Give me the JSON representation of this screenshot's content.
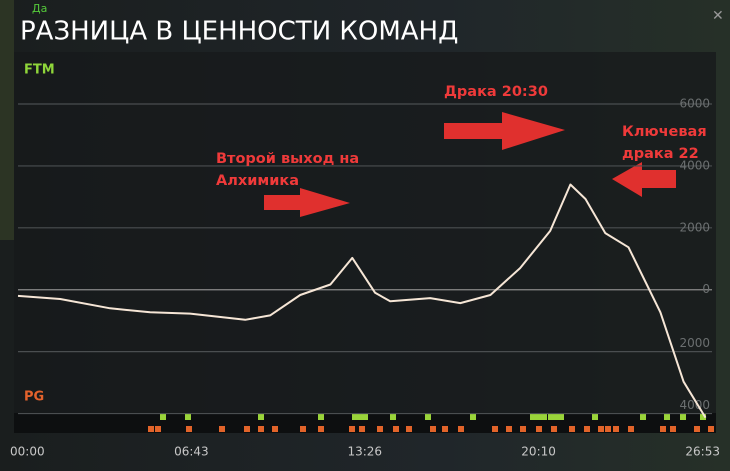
{
  "header": {
    "title": "РАЗНИЦА В ЦЕННОСТИ КОМАНД",
    "player_tag": "Да"
  },
  "chart_data": {
    "type": "line",
    "team_top": "FTM",
    "team_bottom": "PG",
    "x": [
      0,
      98,
      214,
      307,
      400,
      528,
      586,
      656,
      726,
      777,
      830,
      865,
      958,
      1028,
      1098,
      1167,
      1237,
      1284,
      1319,
      1365,
      1419,
      1493,
      1547,
      1598
    ],
    "values": [
      -200,
      -300,
      -600,
      -730,
      -770,
      -970,
      -830,
      -170,
      170,
      1030,
      -100,
      -370,
      -270,
      -430,
      -170,
      700,
      1900,
      3400,
      2930,
      1830,
      1370,
      -730,
      -2970,
      -4130
    ],
    "color": "#f6e6d6",
    "xlim": [
      0,
      1613
    ],
    "xticks": [
      {
        "value": 0,
        "label": "00:00"
      },
      {
        "value": 403,
        "label": "06:43"
      },
      {
        "value": 806,
        "label": "13:26"
      },
      {
        "value": 1210,
        "label": "20:10"
      },
      {
        "value": 1613,
        "label": "26:53"
      }
    ],
    "ylim": [
      -5500,
      6000
    ],
    "yticks": [
      {
        "value": -4000,
        "label": "4000"
      },
      {
        "value": -2000,
        "label": "2000"
      },
      0,
      2000,
      4000,
      6000
    ],
    "grid": true,
    "annotations": [
      "Второй выход на Алхимика",
      "Драка 20:30",
      "Ключевая драка 22"
    ]
  }
}
